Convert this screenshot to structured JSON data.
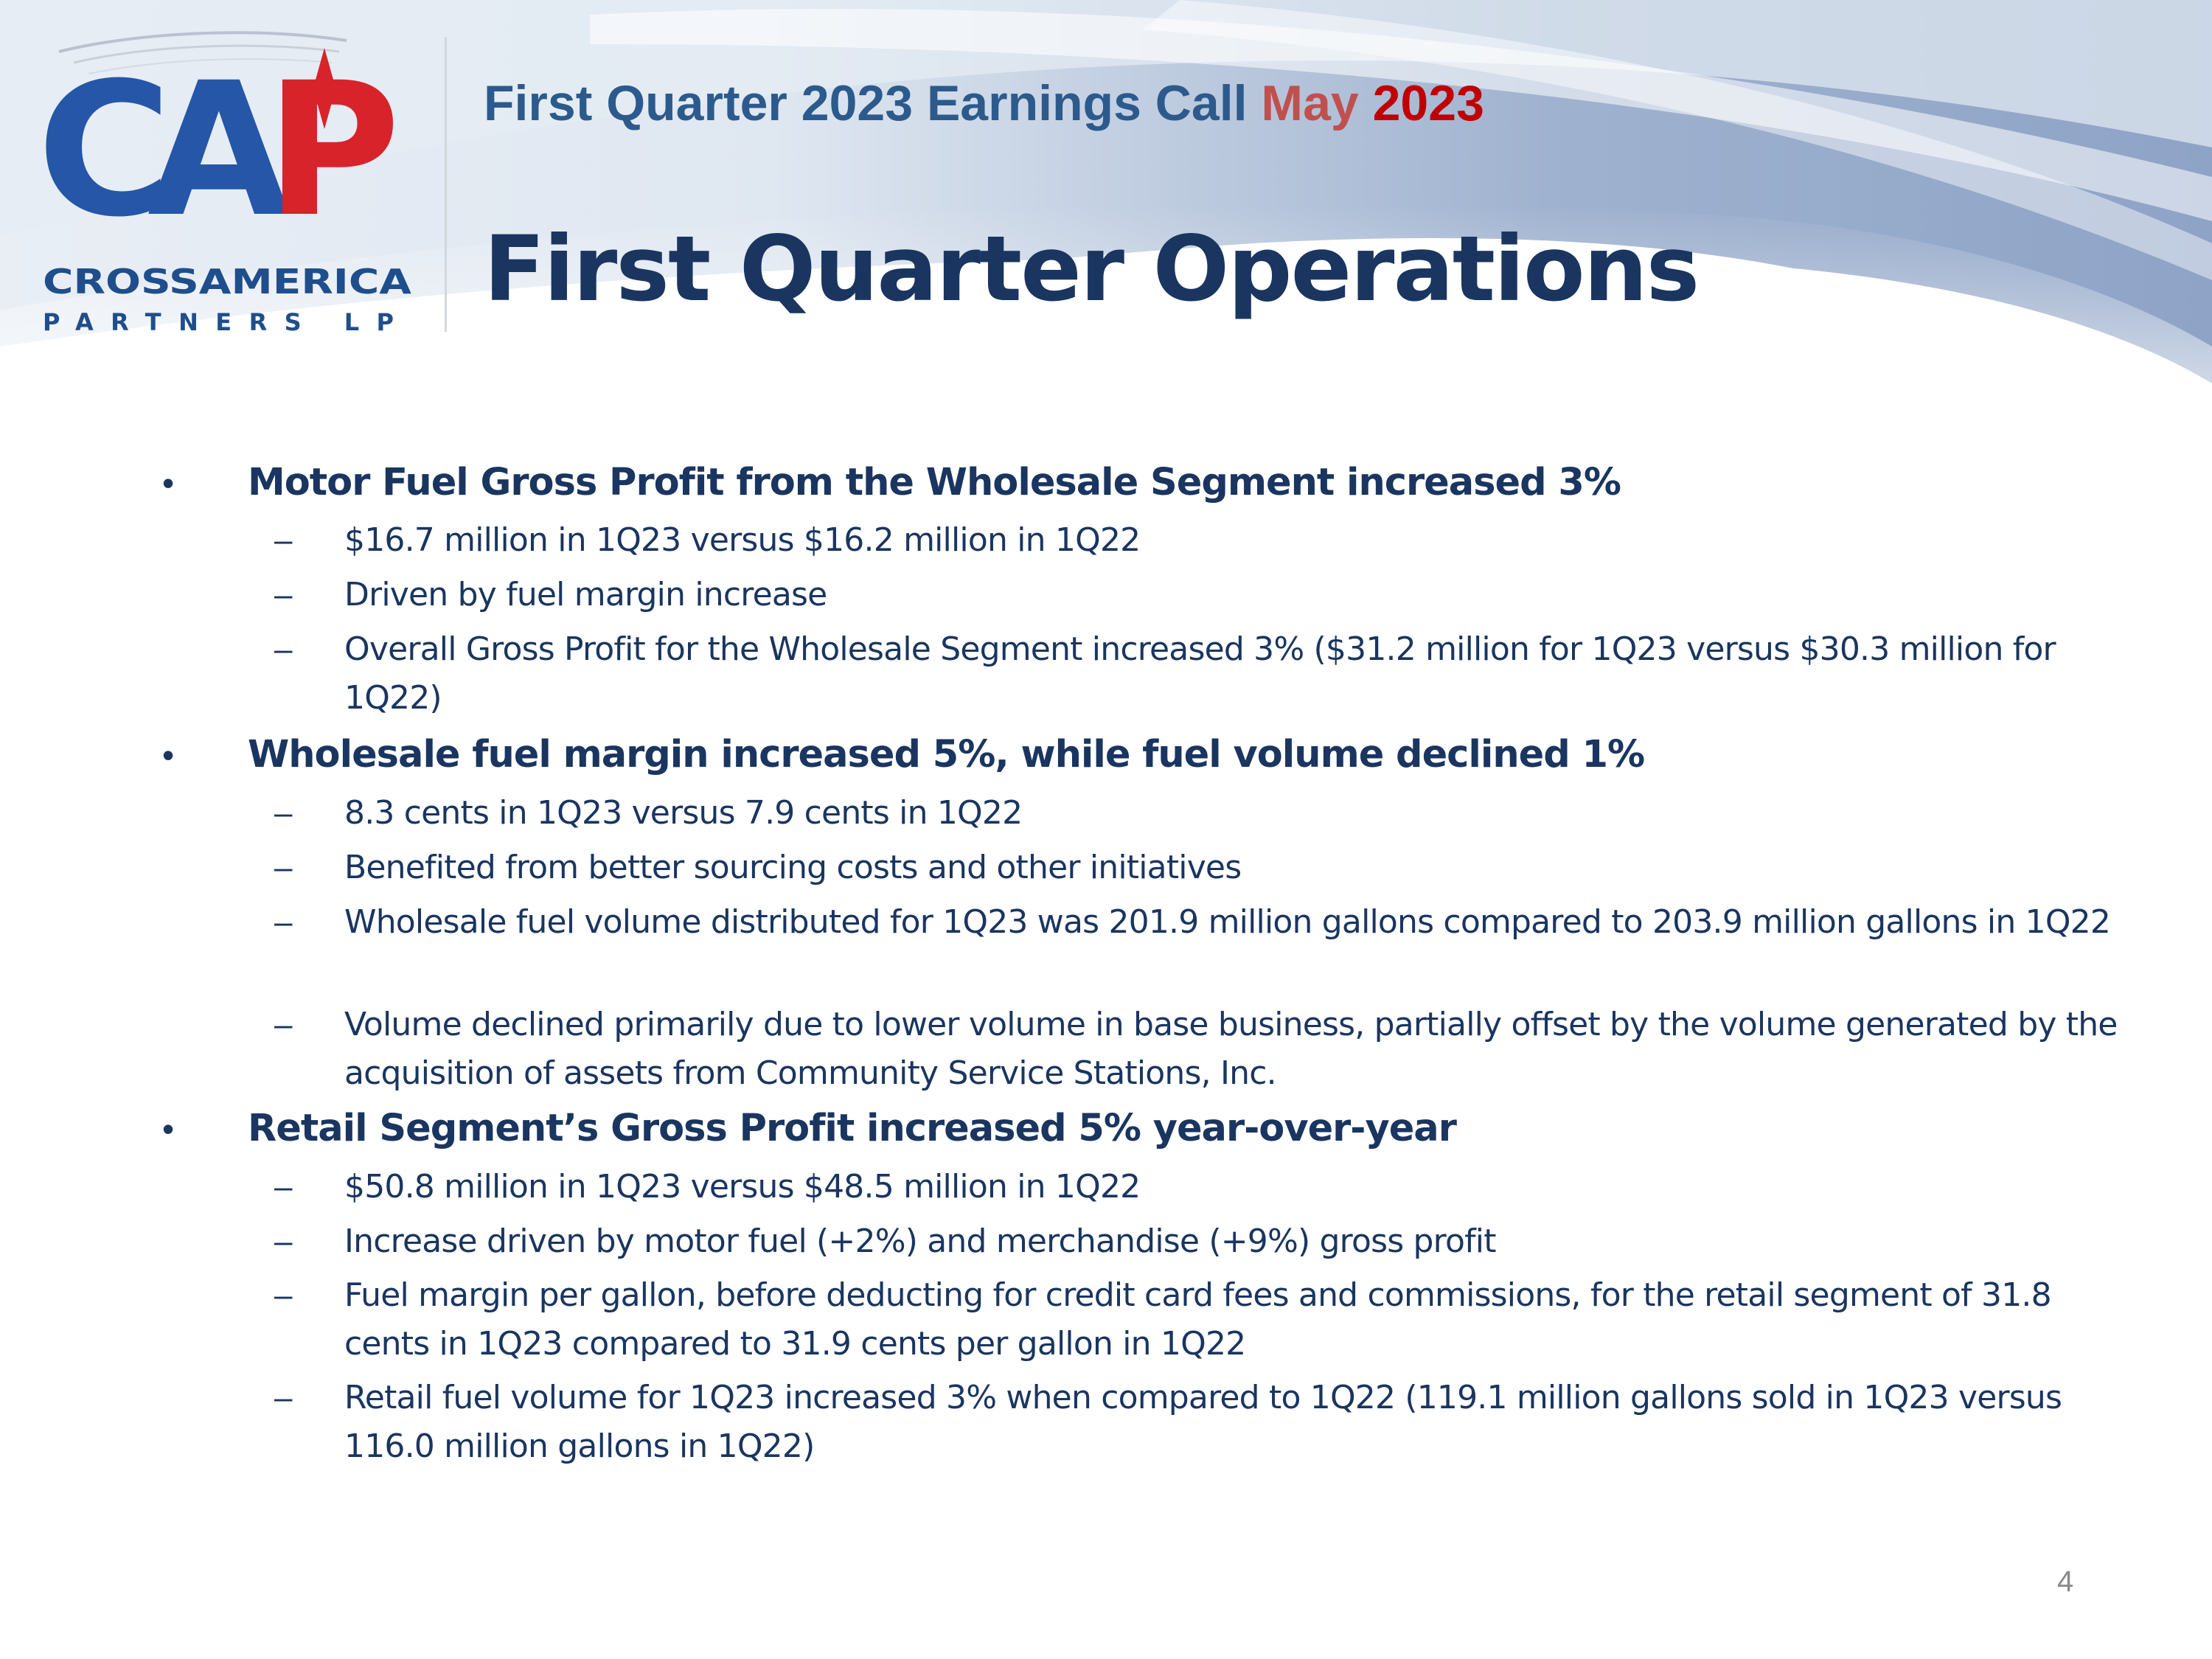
{
  "logo": {
    "letters": "CAP",
    "company_line1": "CROSSAMERICA",
    "company_line2": "PARTNERS LP"
  },
  "header": {
    "event_main": "First Quarter 2023 Earnings Call",
    "event_month": "May",
    "event_year": "2023",
    "title": "First Quarter Operations"
  },
  "bullets": [
    {
      "marker": "•",
      "heading": "Motor Fuel Gross Profit from the Wholesale Segment increased 3%",
      "subs": [
        {
          "dash": "–",
          "text": "$16.7 million in 1Q23 versus $16.2 million in 1Q22"
        },
        {
          "dash": "–",
          "text": "Driven by fuel margin increase"
        },
        {
          "dash": "–",
          "text": "Overall Gross Profit for the Wholesale Segment increased 3% ($31.2 million for 1Q23 versus $30.3 million for 1Q22)"
        }
      ]
    },
    {
      "marker": "•",
      "heading": "Wholesale fuel margin increased 5%, while fuel volume declined 1%",
      "subs": [
        {
          "dash": "–",
          "text": "8.3 cents in 1Q23 versus 7.9 cents in 1Q22"
        },
        {
          "dash": "–",
          "text": "Benefited from better sourcing costs and other initiatives"
        },
        {
          "dash": "–",
          "text": "Wholesale fuel volume distributed for 1Q23 was 201.9 million gallons compared to 203.9 million gallons in 1Q22"
        },
        {
          "dash": "–",
          "text": "Volume declined primarily due to lower volume in base business, partially offset by the volume generated by the acquisition of assets from Community Service Stations, Inc."
        }
      ]
    },
    {
      "marker": "•",
      "heading": "Retail Segment’s Gross Profit increased 5% year-over-year",
      "subs": [
        {
          "dash": "–",
          "text": "$50.8 million in 1Q23 versus $48.5 million in 1Q22"
        },
        {
          "dash": "–",
          "text": "Increase driven by motor fuel (+2%) and merchandise (+9%) gross profit"
        },
        {
          "dash": "–",
          "text": "Fuel margin per gallon, before deducting for credit card fees and commissions, for the retail segment of 31.8 cents in 1Q23 compared to 31.9 cents per gallon in 1Q22"
        },
        {
          "dash": "–",
          "text": "Retail fuel volume for 1Q23 increased 3% when compared to 1Q22 (119.1 million gallons sold in 1Q23 versus 116.0 million gallons in 1Q22)"
        }
      ]
    }
  ],
  "footer": {
    "page_number": "4"
  }
}
